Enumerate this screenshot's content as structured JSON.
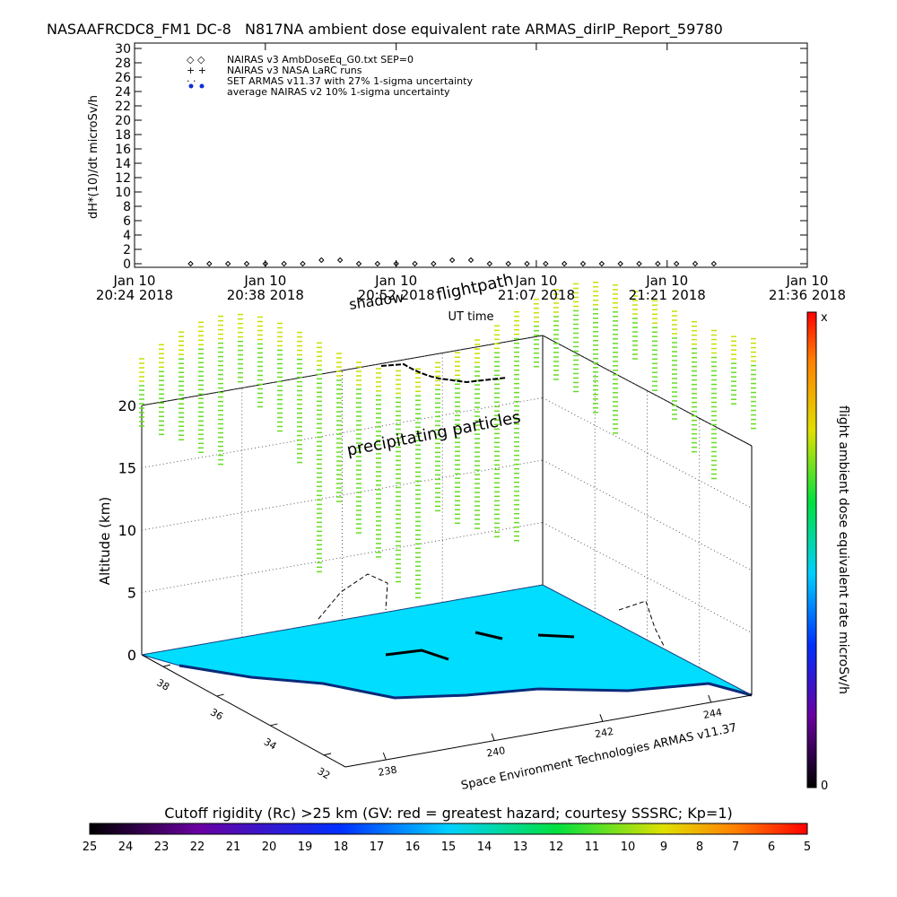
{
  "chart_data": [
    {
      "type": "scatter",
      "title": "NASAAFRCDC8_FM1 DC-8   N817NA ambient dose equivalent rate ARMAS_dirIP_Report_59780",
      "y_label": "dH*(10)/dt microSv/h",
      "x_label": "UT time",
      "xlim": [
        "2018-01-10T20:24",
        "2018-01-10T21:36"
      ],
      "xticks": [
        {
          "value": "2018-01-10T20:24",
          "label": [
            "Jan 10",
            "20:24 2018"
          ]
        },
        {
          "value": "2018-01-10T20:38",
          "label": [
            "Jan 10",
            "20:38 2018"
          ]
        },
        {
          "value": "2018-01-10T20:52",
          "label": [
            "Jan 10",
            "20:52 2018"
          ]
        },
        {
          "value": "2018-01-10T21:07",
          "label": [
            "Jan 10",
            "21:07 2018"
          ]
        },
        {
          "value": "2018-01-10T21:21",
          "label": [
            "Jan 10",
            "21:21 2018"
          ]
        },
        {
          "value": "2018-01-10T21:36",
          "label": [
            "Jan 10",
            "21:36 2018"
          ]
        }
      ],
      "ylim": [
        0,
        30
      ],
      "yticks": [
        0,
        2,
        4,
        6,
        8,
        10,
        12,
        14,
        16,
        18,
        20,
        22,
        24,
        26,
        28,
        30
      ],
      "x": [
        "2018-01-10T20:30",
        "2018-01-10T20:32",
        "2018-01-10T20:34",
        "2018-01-10T20:36",
        "2018-01-10T20:38",
        "2018-01-10T20:40",
        "2018-01-10T20:42",
        "2018-01-10T20:44",
        "2018-01-10T20:46",
        "2018-01-10T20:48",
        "2018-01-10T20:50",
        "2018-01-10T20:52",
        "2018-01-10T20:54",
        "2018-01-10T20:56",
        "2018-01-10T20:58",
        "2018-01-10T21:00",
        "2018-01-10T21:02",
        "2018-01-10T21:04",
        "2018-01-10T21:06",
        "2018-01-10T21:08",
        "2018-01-10T21:10",
        "2018-01-10T21:12",
        "2018-01-10T21:14",
        "2018-01-10T21:16",
        "2018-01-10T21:18",
        "2018-01-10T21:20",
        "2018-01-10T21:22",
        "2018-01-10T21:24",
        "2018-01-10T21:26"
      ],
      "series": [
        {
          "name": "NAIRAS v3 AmbDoseEq_G0.txt SEP=0",
          "color": "#000000",
          "values": [
            0,
            0,
            0,
            0,
            0,
            0,
            0,
            0.5,
            0.5,
            0,
            0,
            0,
            0,
            0,
            0.5,
            0.5,
            0,
            0,
            0,
            0,
            0,
            0,
            0,
            0,
            0,
            0,
            0,
            0,
            0
          ]
        }
      ],
      "legend_entries": [
        "NAIRAS v3 NASA LaRC runs",
        "SET ARMAS v11.37 with 27% 1-sigma uncertainty",
        "average NAIRAS v2 10% 1-sigma uncertainty"
      ]
    },
    {
      "type": "surface3d",
      "annotations": [
        "shadow",
        "flightpath",
        "precipitating particles"
      ],
      "z_label": "Altitude (km)",
      "zlim": [
        0,
        20
      ],
      "zticks": [
        0,
        5,
        10,
        15,
        20
      ],
      "latlim": [
        38.8,
        31.2
      ],
      "latticks": [
        38,
        36,
        34,
        32
      ],
      "lonlim": [
        237.25,
        244.75
      ],
      "lonticks": [
        238,
        240,
        242,
        244
      ],
      "credit": "Space Environment Technologies ARMAS v11.37",
      "colorbar_label": "flight ambient dose equivalent rate microSv/h",
      "colorbar_ends": [
        "x",
        "0"
      ],
      "rc_title": "Cutoff rigidity (Rc) >25 km (GV: red = greatest hazard; courtesy SSSRC; Kp=1)",
      "rc_ticks": [
        25,
        24,
        23,
        22,
        21,
        20,
        19,
        18,
        17,
        16,
        15,
        14,
        13,
        12,
        11,
        10,
        9,
        8,
        7,
        6,
        5
      ]
    }
  ]
}
